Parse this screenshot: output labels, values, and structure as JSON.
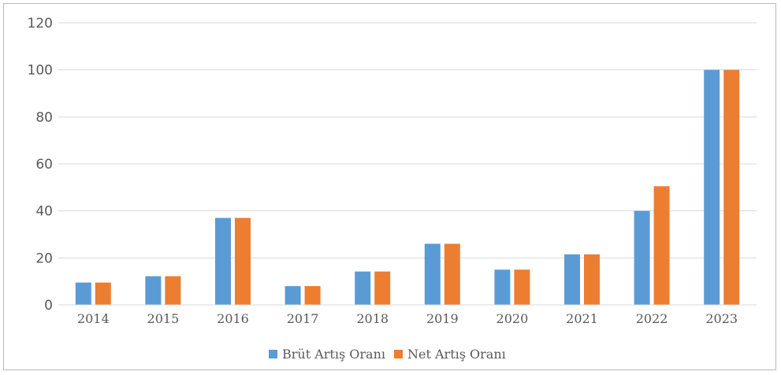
{
  "chart_data": {
    "type": "bar",
    "title": "",
    "xlabel": "",
    "ylabel": "",
    "categories": [
      "2014",
      "2015",
      "2016",
      "2017",
      "2018",
      "2019",
      "2020",
      "2021",
      "2022",
      "2023"
    ],
    "series": [
      {
        "name": "Brüt Artış Oranı",
        "color": "#5b9bd5",
        "values": [
          9.5,
          12.2,
          37,
          8,
          14.2,
          26,
          15,
          21.5,
          40,
          100
        ]
      },
      {
        "name": "Net Artış Oranı",
        "color": "#ed7d31",
        "values": [
          9.5,
          12.2,
          37,
          8,
          14.2,
          26,
          15,
          21.5,
          50.5,
          100
        ]
      }
    ],
    "yticks": [
      "0",
      "20",
      "40",
      "60",
      "80",
      "100",
      "120"
    ],
    "ylim": [
      0,
      120
    ],
    "grid": true,
    "legend_position": "bottom-center"
  }
}
